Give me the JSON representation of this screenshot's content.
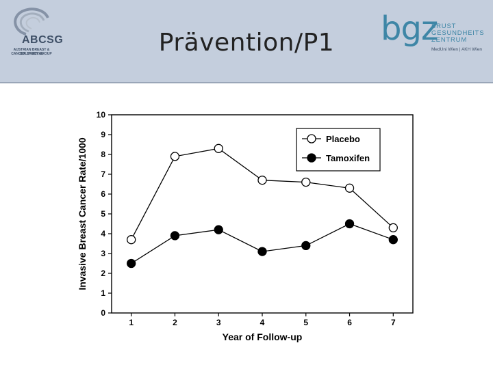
{
  "header": {
    "title": "Prävention/P1",
    "left_logo": {
      "name": "ABCSG",
      "subtitle_line1": "AUSTRIAN BREAST & COLORECTAL",
      "subtitle_line2": "CANCER STUDY GROUP"
    },
    "right_logo": {
      "mark": "bgz",
      "line1": "BRUST",
      "line2": "GESUNDHEITS",
      "line3": "ZENTRUM",
      "footer": "MedUni Wien | AKH Wien"
    },
    "colors": {
      "band": "#c4cedd",
      "bgz": "#3e86a6",
      "abcsg": "#3e4f66"
    }
  },
  "chart_data": {
    "type": "line",
    "title": "",
    "xlabel": "Year of Follow-up",
    "ylabel": "Invasive Breast Cancer Rate/1000",
    "x": [
      1,
      2,
      3,
      4,
      5,
      6,
      7
    ],
    "xticks": [
      "1",
      "2",
      "3",
      "4",
      "5",
      "6",
      "7"
    ],
    "yticks": [
      "0",
      "1",
      "2",
      "3",
      "4",
      "5",
      "6",
      "7",
      "8",
      "9",
      "10"
    ],
    "ylim": [
      0,
      10
    ],
    "grid": false,
    "legend_position": "top-right",
    "series": [
      {
        "name": "Placebo",
        "marker": "open-circle",
        "values": [
          3.7,
          7.9,
          8.3,
          6.7,
          6.6,
          6.3,
          4.3
        ]
      },
      {
        "name": "Tamoxifen",
        "marker": "filled-circle",
        "values": [
          2.5,
          3.9,
          4.2,
          3.1,
          3.4,
          4.5,
          3.7
        ]
      }
    ]
  }
}
